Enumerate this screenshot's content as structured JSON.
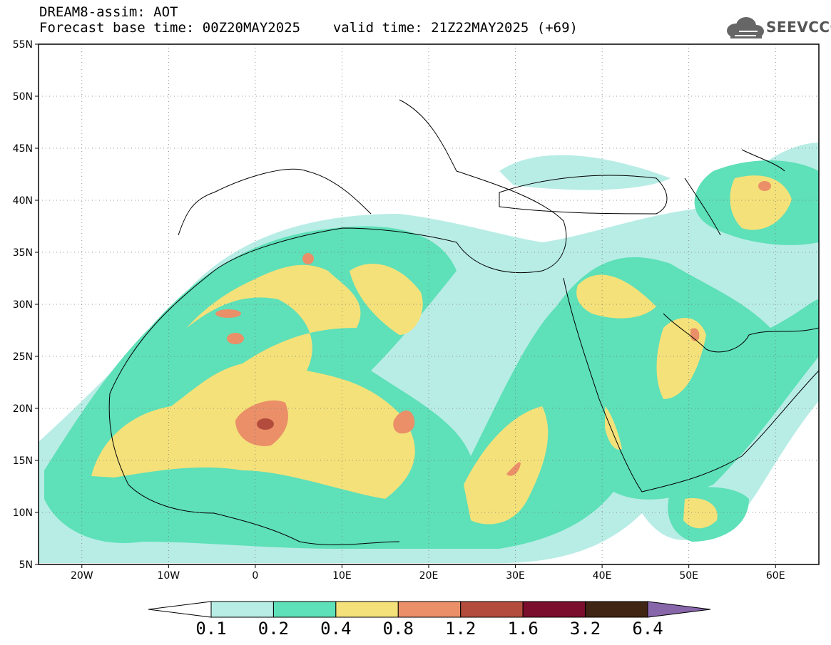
{
  "title": {
    "line1": "DREAM8-assim: AOT",
    "base_time": "Forecast base time: 00Z20MAY2025",
    "valid_time": "valid time: 21Z22MAY2025 (+69)"
  },
  "logo": {
    "text": "SEEVCCC",
    "icon": "cloud-icon"
  },
  "map": {
    "lon_range": [
      -25,
      65
    ],
    "lat_range": [
      5,
      55
    ],
    "lat_ticks": [
      "5N",
      "10N",
      "15N",
      "20N",
      "25N",
      "30N",
      "35N",
      "40N",
      "45N",
      "50N",
      "55N"
    ],
    "lon_ticks": [
      "20W",
      "10W",
      "0",
      "10E",
      "20E",
      "30E",
      "40E",
      "50E",
      "60E"
    ],
    "grid": "dotted"
  },
  "colorbar": {
    "levels": [
      "0.1",
      "0.2",
      "0.4",
      "0.8",
      "1.2",
      "1.6",
      "3.2",
      "6.4"
    ],
    "colors": [
      "#ffffff",
      "#b8ede6",
      "#5ee0b8",
      "#f4e17a",
      "#ea8f68",
      "#b34c3c",
      "#7a0e2c",
      "#402414",
      "#8866aa"
    ]
  }
}
